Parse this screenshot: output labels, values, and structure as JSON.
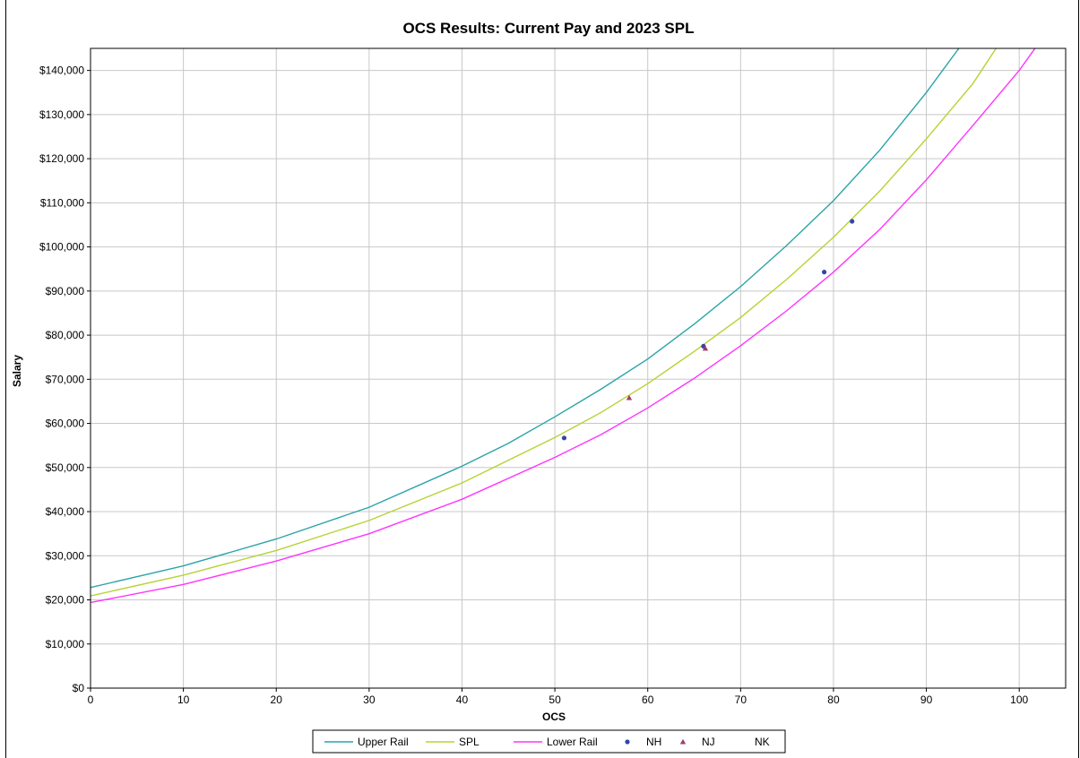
{
  "chart_data": {
    "type": "line",
    "title": "OCS Results: Current Pay and 2023 SPL",
    "xlabel": "OCS",
    "ylabel": "Salary",
    "xlim": [
      0,
      105
    ],
    "ylim": [
      0,
      145000
    ],
    "x_ticks": [
      0,
      10,
      20,
      30,
      40,
      50,
      60,
      70,
      80,
      90,
      100
    ],
    "x_tick_labels": [
      "0",
      "10",
      "20",
      "30",
      "40",
      "50",
      "60",
      "70",
      "80",
      "90",
      "100"
    ],
    "y_ticks": [
      0,
      10000,
      20000,
      30000,
      40000,
      50000,
      60000,
      70000,
      80000,
      90000,
      100000,
      110000,
      120000,
      130000,
      140000
    ],
    "y_tick_labels": [
      "$0",
      "$10,000",
      "$20,000",
      "$30,000",
      "$40,000",
      "$50,000",
      "$60,000",
      "$70,000",
      "$80,000",
      "$90,000",
      "$100,000",
      "$110,000",
      "$120,000",
      "$130,000",
      "$140,000"
    ],
    "grid": true,
    "legend_position": "bottom",
    "series": [
      {
        "name": "Upper Rail",
        "kind": "line",
        "color": "#2aa4a8",
        "points": [
          [
            0,
            22800
          ],
          [
            10,
            27700
          ],
          [
            20,
            33800
          ],
          [
            30,
            41000
          ],
          [
            40,
            50300
          ],
          [
            45,
            55500
          ],
          [
            50,
            61500
          ],
          [
            55,
            67800
          ],
          [
            60,
            74600
          ],
          [
            65,
            82500
          ],
          [
            70,
            91000
          ],
          [
            75,
            100400
          ],
          [
            80,
            110500
          ],
          [
            85,
            122000
          ],
          [
            90,
            135000
          ],
          [
            93.5,
            145000
          ]
        ]
      },
      {
        "name": "SPL",
        "kind": "line",
        "color": "#b5d334",
        "points": [
          [
            0,
            20900
          ],
          [
            10,
            25600
          ],
          [
            20,
            31200
          ],
          [
            30,
            38000
          ],
          [
            40,
            46500
          ],
          [
            50,
            56800
          ],
          [
            55,
            62500
          ],
          [
            60,
            69000
          ],
          [
            65,
            76300
          ],
          [
            70,
            84000
          ],
          [
            75,
            92700
          ],
          [
            80,
            102200
          ],
          [
            85,
            112700
          ],
          [
            90,
            124500
          ],
          [
            95,
            137000
          ],
          [
            97.5,
            145000
          ]
        ]
      },
      {
        "name": "Lower Rail",
        "kind": "line",
        "color": "#ff33ff",
        "points": [
          [
            0,
            19400
          ],
          [
            10,
            23500
          ],
          [
            20,
            28800
          ],
          [
            30,
            35000
          ],
          [
            40,
            42800
          ],
          [
            50,
            52300
          ],
          [
            55,
            57500
          ],
          [
            60,
            63500
          ],
          [
            65,
            70200
          ],
          [
            70,
            77600
          ],
          [
            75,
            85600
          ],
          [
            80,
            94300
          ],
          [
            85,
            104000
          ],
          [
            90,
            115200
          ],
          [
            95,
            127500
          ],
          [
            100,
            140000
          ],
          [
            101.7,
            145000
          ]
        ]
      },
      {
        "name": "NH",
        "kind": "marker",
        "marker": "circle",
        "color": "#3344aa",
        "points": [
          [
            51,
            56700
          ],
          [
            66,
            77500
          ],
          [
            79,
            94300
          ],
          [
            82,
            105800
          ]
        ]
      },
      {
        "name": "NJ",
        "kind": "marker",
        "marker": "triangle",
        "color": "#a03c6e",
        "points": [
          [
            58,
            65800
          ],
          [
            66.2,
            77000
          ]
        ]
      },
      {
        "name": "NK",
        "kind": "marker",
        "marker": "none",
        "color": "#000000",
        "points": []
      }
    ]
  }
}
